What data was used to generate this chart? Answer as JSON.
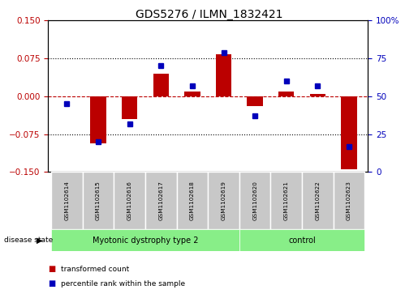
{
  "title": "GDS5276 / ILMN_1832421",
  "samples": [
    "GSM1102614",
    "GSM1102615",
    "GSM1102616",
    "GSM1102617",
    "GSM1102618",
    "GSM1102619",
    "GSM1102620",
    "GSM1102621",
    "GSM1102622",
    "GSM1102623"
  ],
  "red_values": [
    0.0,
    -0.093,
    -0.045,
    0.045,
    0.01,
    0.083,
    -0.02,
    0.01,
    0.005,
    -0.145
  ],
  "blue_values": [
    45,
    20,
    32,
    70,
    57,
    79,
    37,
    60,
    57,
    17
  ],
  "ylim_left": [
    -0.15,
    0.15
  ],
  "ylim_right": [
    0,
    100
  ],
  "yticks_left": [
    -0.15,
    -0.075,
    0,
    0.075,
    0.15
  ],
  "yticks_right": [
    0,
    25,
    50,
    75,
    100
  ],
  "group1_label": "Myotonic dystrophy type 2",
  "group1_count": 6,
  "group2_label": "control",
  "group2_count": 4,
  "disease_state_label": "disease state",
  "legend_red": "transformed count",
  "legend_blue": "percentile rank within the sample",
  "red_color": "#BB0000",
  "blue_color": "#0000BB",
  "bar_width": 0.5,
  "group1_color": "#88EE88",
  "group2_color": "#88EE88",
  "sample_bg_color": "#C8C8C8",
  "plot_bg_color": "#FFFFFF",
  "figsize": [
    5.15,
    3.63
  ],
  "dpi": 100
}
